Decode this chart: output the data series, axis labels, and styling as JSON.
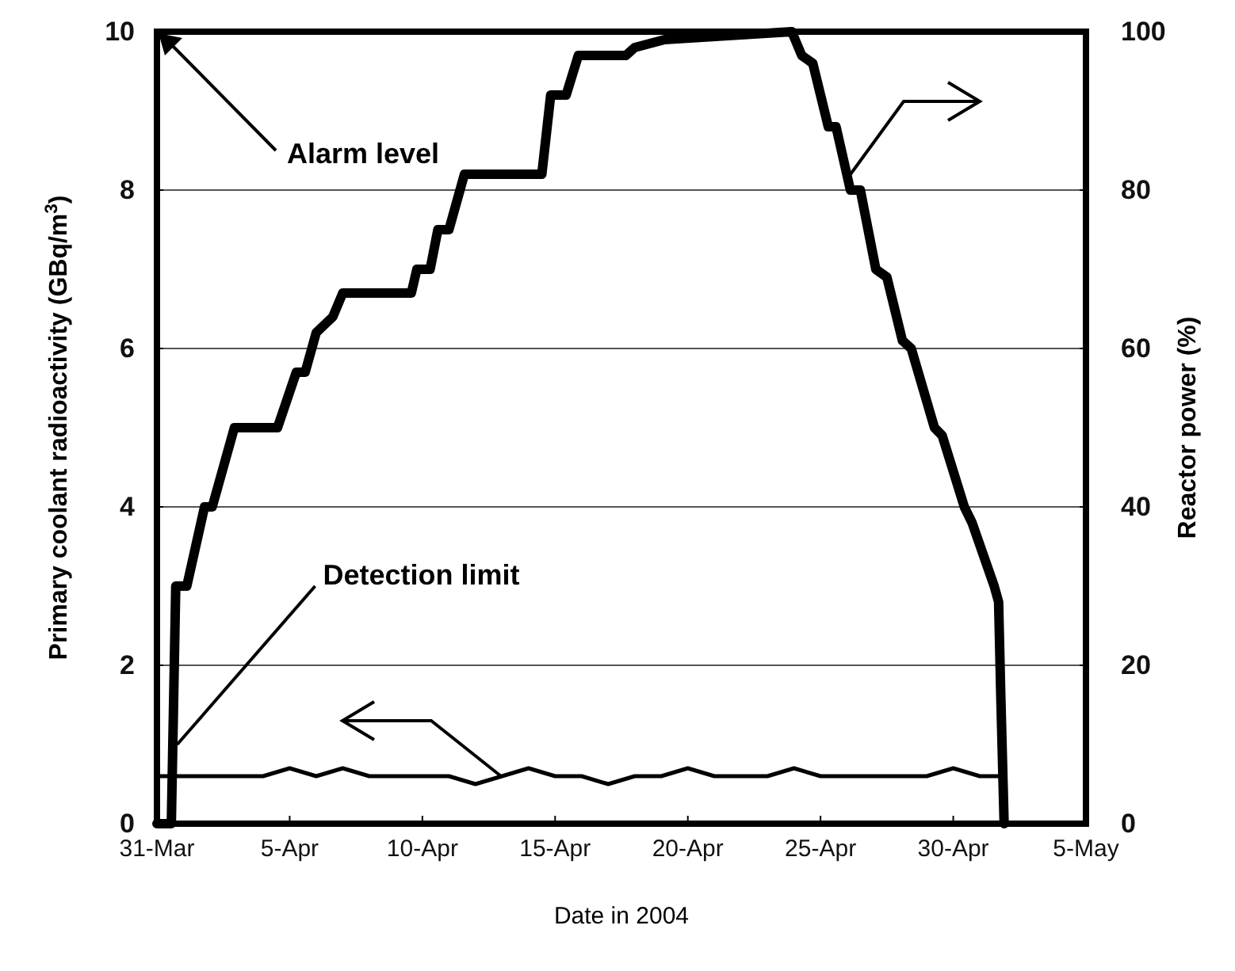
{
  "chart_data": {
    "type": "line",
    "xlabel": "Date in 2004",
    "ylabel": "Primary coolant radioactivity (GBq/m$^{3}$)",
    "y2label": "Reactor power (%)",
    "xlim": [
      "2004-03-31",
      "2004-05-05"
    ],
    "xticks": [
      {
        "value": "2004-03-31",
        "label": "31-Mar"
      },
      {
        "value": "2004-04-05",
        "label": "5-Apr"
      },
      {
        "value": "2004-04-10",
        "label": "10-Apr"
      },
      {
        "value": "2004-04-15",
        "label": "15-Apr"
      },
      {
        "value": "2004-04-20",
        "label": "20-Apr"
      },
      {
        "value": "2004-04-25",
        "label": "25-Apr"
      },
      {
        "value": "2004-04-30",
        "label": "30-Apr"
      },
      {
        "value": "2004-05-05",
        "label": "5-May"
      }
    ],
    "ylim": [
      0,
      10
    ],
    "yticks": [
      0,
      2,
      4,
      6,
      8,
      10
    ],
    "y2lim": [
      0,
      100
    ],
    "y2ticks": [
      0,
      20,
      40,
      60,
      80,
      100
    ],
    "grid": "y",
    "marker": "none",
    "line_style": "solid",
    "annotations": [
      "Alarm level",
      {
        "text": "Detection limit",
        "x": "2004-03-31T14:00",
        "y": 1.0
      }
    ],
    "series": [
      {
        "color": "#000000",
        "axis": "y",
        "x": [
          "2004-03-31",
          "2004-04-01",
          "2004-04-02",
          "2004-04-03",
          "2004-04-04",
          "2004-04-05",
          "2004-04-06",
          "2004-04-07",
          "2004-04-08",
          "2004-04-09",
          "2004-04-10",
          "2004-04-11",
          "2004-04-12",
          "2004-04-13",
          "2004-04-14",
          "2004-04-15",
          "2004-04-16",
          "2004-04-17",
          "2004-04-18",
          "2004-04-19",
          "2004-04-20",
          "2004-04-21",
          "2004-04-22",
          "2004-04-23",
          "2004-04-24",
          "2004-04-25",
          "2004-04-26",
          "2004-04-27",
          "2004-04-28",
          "2004-04-29",
          "2004-04-30",
          "2004-05-01",
          "2004-05-01T20:00"
        ],
        "values": [
          0.6,
          0.6,
          0.6,
          0.6,
          0.6,
          0.7,
          0.6,
          0.7,
          0.6,
          0.6,
          0.6,
          0.6,
          0.5,
          0.6,
          0.7,
          0.6,
          0.6,
          0.5,
          0.6,
          0.6,
          0.7,
          0.6,
          0.6,
          0.6,
          0.7,
          0.6,
          0.6,
          0.6,
          0.6,
          0.6,
          0.7,
          0.6,
          0.6
        ]
      },
      {
        "color": "#000000",
        "axis": "y2",
        "x": [
          "2004-03-31",
          "2004-03-31T13:00",
          "2004-03-31T17:00",
          "2004-04-01T03:00",
          "2004-04-01T19:00",
          "2004-04-02T02:00",
          "2004-04-02T22:00",
          "2004-04-04T13:00",
          "2004-04-05T06:00",
          "2004-04-05T14:00",
          "2004-04-06",
          "2004-04-06T15:00",
          "2004-04-07",
          "2004-04-09T14:00",
          "2004-04-09T19:00",
          "2004-04-10T07:00",
          "2004-04-10T14:00",
          "2004-04-11",
          "2004-04-11T14:00",
          "2004-04-14T12:00",
          "2004-04-14T20:00",
          "2004-04-15T10:00",
          "2004-04-15T21:00",
          "2004-04-17T16:00",
          "2004-04-18",
          "2004-04-19T03:00",
          "2004-04-23T22:00",
          "2004-04-24T07:00",
          "2004-04-24T17:00",
          "2004-04-25T07:00",
          "2004-04-25T14:00",
          "2004-04-26T03:00",
          "2004-04-26T12:00",
          "2004-04-27T02:00",
          "2004-04-27T12:00",
          "2004-04-28T02:00",
          "2004-04-28T10:00",
          "2004-04-29T07:00",
          "2004-04-29T14:00",
          "2004-04-30T10:00",
          "2004-04-30T17:00",
          "2004-05-01T13:00",
          "2004-05-01T17:00",
          "2004-05-01T19:00",
          "2004-05-01T22:00"
        ],
        "values": [
          0,
          0,
          30,
          30,
          40,
          40,
          50,
          50,
          57,
          57,
          62,
          64,
          67,
          67,
          70,
          70,
          75,
          75,
          82,
          82,
          92,
          92,
          97,
          97,
          98,
          99,
          100,
          97,
          96,
          88,
          88,
          80,
          80,
          70,
          69,
          61,
          60,
          50,
          49,
          40,
          38,
          30,
          28,
          16,
          0
        ]
      }
    ]
  }
}
